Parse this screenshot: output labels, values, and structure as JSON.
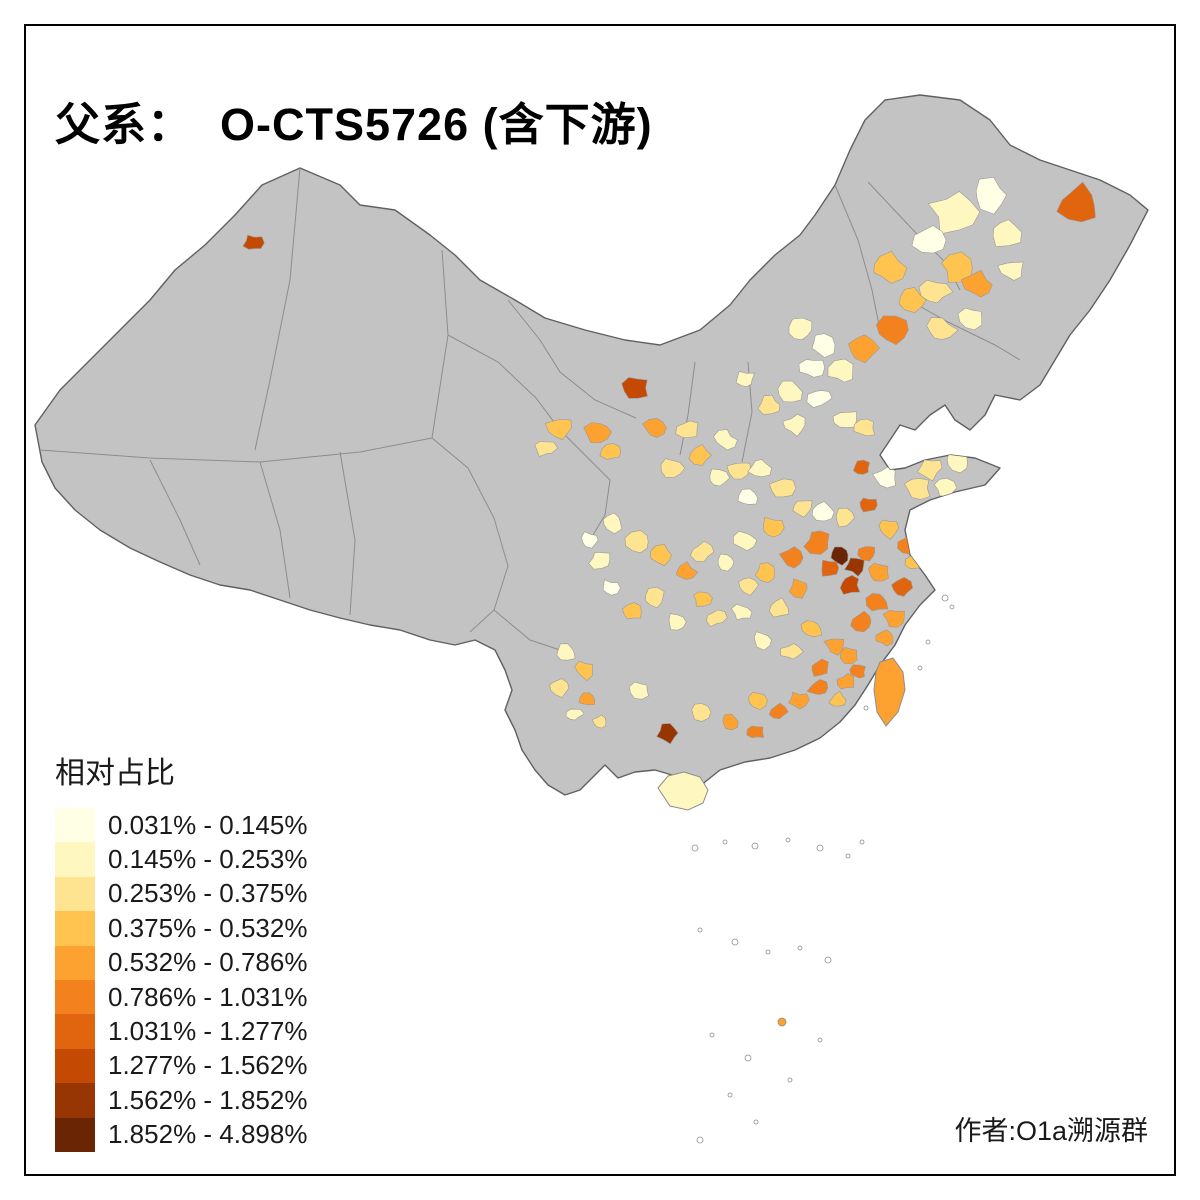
{
  "title": "父系：  O-CTS5726 (含下游)",
  "legend": {
    "title": "相对占比",
    "classes": [
      {
        "label": "0.031% - 0.145%",
        "color": "#FFFFE5"
      },
      {
        "label": "0.145% - 0.253%",
        "color": "#FFF7C0"
      },
      {
        "label": "0.253% - 0.375%",
        "color": "#FEE391"
      },
      {
        "label": "0.375% - 0.532%",
        "color": "#FEC44F"
      },
      {
        "label": "0.532% - 0.786%",
        "color": "#FDA231"
      },
      {
        "label": "0.786% - 1.031%",
        "color": "#F3811D"
      },
      {
        "label": "1.031% - 1.277%",
        "color": "#E1640E"
      },
      {
        "label": "1.277% - 1.562%",
        "color": "#C44A03"
      },
      {
        "label": "1.562% - 1.852%",
        "color": "#983603"
      },
      {
        "label": "1.852% - 4.898%",
        "color": "#6A2505"
      }
    ]
  },
  "credit": "作者:O1a溯源群",
  "map": {
    "region_label": "China prefecture-level choropleth",
    "no_data_color": "#C3C3C3",
    "border_color": "#606060",
    "inner_border_color": "#8D8D8D",
    "background_color": "#FFFFFF"
  }
}
